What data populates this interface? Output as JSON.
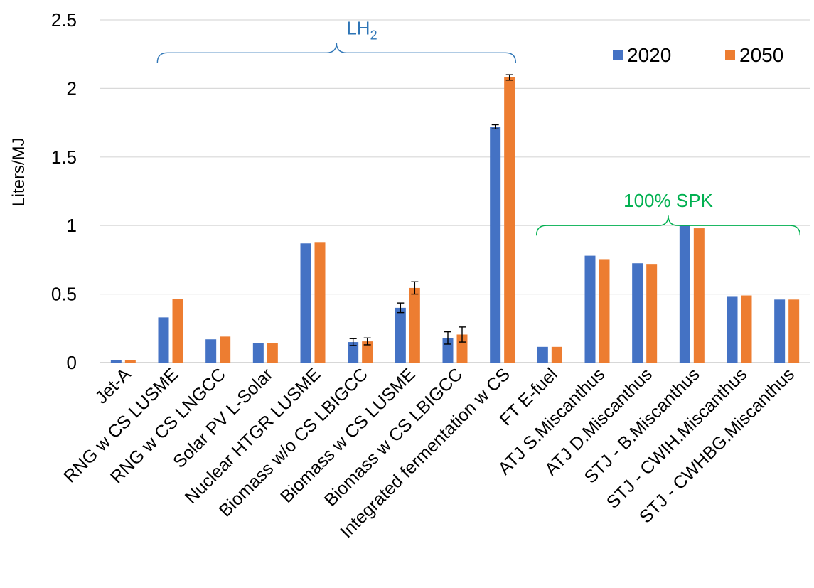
{
  "chart_data": {
    "type": "bar",
    "ylabel": "Liters/MJ",
    "ylim": [
      0,
      2.5
    ],
    "yticks": [
      "0",
      "0.5",
      "1",
      "1.5",
      "2",
      "2.5"
    ],
    "grid": true,
    "legend_placement": "top-right",
    "categories": [
      "Jet-A",
      "RNG w CS LUSME",
      "RNG w CS LNGCC",
      "Solar PV L-Solar",
      "Nuclear HTGR LUSME",
      "Biomass w/o CS LBIGCC",
      "Biomass w CS LUSME",
      "Biomass w CS LBIGCC",
      "Integrated fermentation w CS",
      "FT E-fuel",
      "ATJ S.Miscanthus",
      "ATJ D.Miscanthus",
      "STJ - B.Miscanthus",
      "STJ - CWIH.Miscanthus",
      "STJ - CWHBG.Miscanthus"
    ],
    "series": [
      {
        "name": "2020",
        "color": "#4472C4",
        "values": [
          0.02,
          0.33,
          0.17,
          0.14,
          0.87,
          0.15,
          0.4,
          0.18,
          1.72,
          0.115,
          0.78,
          0.725,
          1.0,
          0.48,
          0.46
        ],
        "errors": [
          0,
          0,
          0,
          0,
          0,
          0.025,
          0.035,
          0.045,
          0.015,
          0,
          0,
          0,
          0,
          0,
          0
        ]
      },
      {
        "name": "2050",
        "color": "#ED7D31",
        "values": [
          0.02,
          0.465,
          0.19,
          0.14,
          0.875,
          0.155,
          0.545,
          0.205,
          2.08,
          0.115,
          0.755,
          0.715,
          0.98,
          0.49,
          0.46
        ],
        "errors": [
          0,
          0,
          0,
          0,
          0,
          0.025,
          0.045,
          0.055,
          0.02,
          0,
          0,
          0,
          0,
          0,
          0
        ]
      }
    ],
    "annotations": [
      {
        "text_main": "LH",
        "text_sub": "2",
        "color": "#2E75B6",
        "from_category": 1,
        "to_category": 8,
        "level": 2.26
      },
      {
        "text_main": "100% SPK",
        "text_sub": "",
        "color": "#00B050",
        "from_category": 9,
        "to_category": 14,
        "level": 1.0
      }
    ]
  }
}
